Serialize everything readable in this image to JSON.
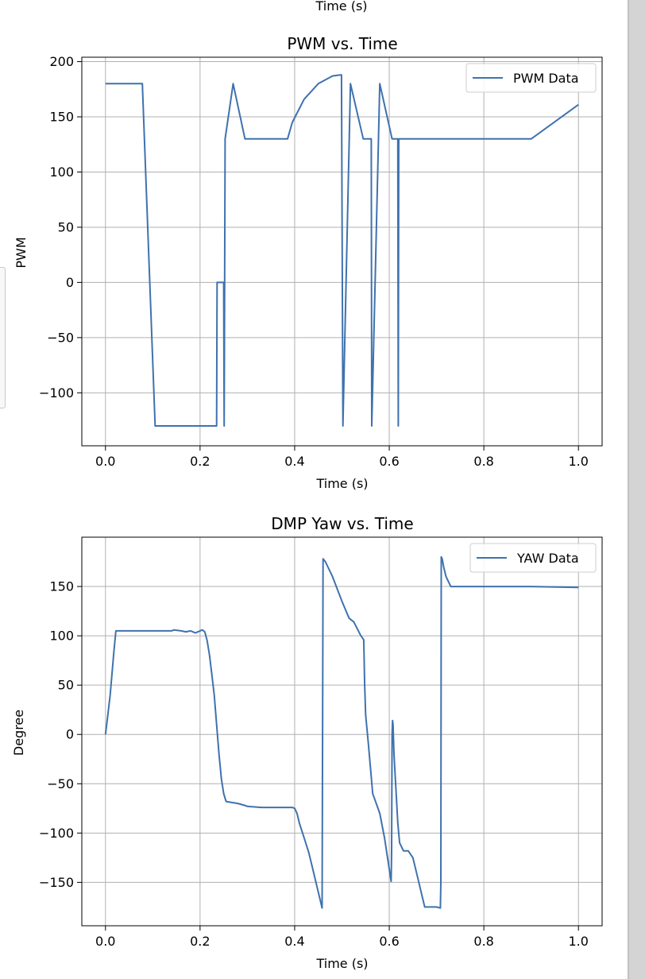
{
  "top_cut_label": "Time (s)",
  "chart_data": [
    {
      "type": "line",
      "title": "PWM vs. Time",
      "xlabel": "Time (s)",
      "ylabel": "PWM",
      "xlim": [
        -0.05,
        1.05
      ],
      "ylim": [
        -148,
        204
      ],
      "x_ticks": [
        0.0,
        0.2,
        0.4,
        0.6,
        0.8,
        1.0
      ],
      "x_tick_labels": [
        "0.0",
        "0.2",
        "0.4",
        "0.6",
        "0.8",
        "1.0"
      ],
      "y_ticks": [
        200,
        150,
        100,
        50,
        0,
        -50,
        -100
      ],
      "y_tick_labels": [
        "200",
        "150",
        "100",
        "50",
        "0",
        "−50",
        "−100"
      ],
      "grid": true,
      "legend": "top-right",
      "color": "#3f72ae",
      "series": [
        {
          "name": "PWM Data",
          "x": [
            0.0,
            0.078,
            0.105,
            0.235,
            0.236,
            0.25,
            0.251,
            0.252,
            0.253,
            0.27,
            0.295,
            0.385,
            0.395,
            0.42,
            0.45,
            0.48,
            0.497,
            0.499,
            0.502,
            0.518,
            0.545,
            0.562,
            0.563,
            0.58,
            0.606,
            0.618,
            0.619,
            0.62,
            0.621,
            0.625,
            0.9,
            1.0
          ],
          "y": [
            180,
            180,
            -130,
            -130,
            0,
            0,
            -130,
            0,
            130,
            180,
            130,
            130,
            145,
            166,
            180,
            187,
            188,
            188,
            -130,
            180,
            130,
            130,
            -130,
            180,
            130,
            130,
            -130,
            130,
            130,
            130,
            130,
            161
          ]
        }
      ]
    },
    {
      "type": "line",
      "title": "DMP Yaw vs. Time",
      "xlabel": "Time (s)",
      "ylabel": "Degree",
      "xlim": [
        -0.05,
        1.05
      ],
      "ylim": [
        -194,
        200
      ],
      "x_ticks": [
        0.0,
        0.2,
        0.4,
        0.6,
        0.8,
        1.0
      ],
      "x_tick_labels": [
        "0.0",
        "0.2",
        "0.4",
        "0.6",
        "0.8",
        "1.0"
      ],
      "y_ticks": [
        150,
        100,
        50,
        0,
        -50,
        -100,
        -150
      ],
      "y_tick_labels": [
        "150",
        "100",
        "50",
        "0",
        "−50",
        "−100",
        "−150"
      ],
      "grid": true,
      "legend": "top-right",
      "color": "#3f72ae",
      "series": [
        {
          "name": "YAW Data",
          "x": [
            0.0,
            0.005,
            0.01,
            0.018,
            0.022,
            0.023,
            0.05,
            0.1,
            0.14,
            0.145,
            0.16,
            0.17,
            0.18,
            0.19,
            0.2,
            0.205,
            0.21,
            0.215,
            0.22,
            0.225,
            0.23,
            0.235,
            0.24,
            0.245,
            0.25,
            0.255,
            0.28,
            0.295,
            0.3,
            0.33,
            0.37,
            0.39,
            0.395,
            0.4,
            0.405,
            0.41,
            0.42,
            0.43,
            0.44,
            0.455,
            0.458,
            0.46,
            0.465,
            0.48,
            0.5,
            0.515,
            0.52,
            0.525,
            0.54,
            0.546,
            0.548,
            0.55,
            0.556,
            0.565,
            0.58,
            0.59,
            0.604,
            0.605,
            0.606,
            0.607,
            0.608,
            0.61,
            0.618,
            0.622,
            0.63,
            0.64,
            0.65,
            0.655,
            0.66,
            0.67,
            0.675,
            0.68,
            0.7,
            0.708,
            0.709,
            0.71,
            0.712,
            0.715,
            0.72,
            0.73,
            0.8,
            0.9,
            1.0
          ],
          "y": [
            0,
            20,
            40,
            85,
            105,
            105,
            105,
            105,
            105,
            106,
            105,
            104,
            105,
            103,
            105,
            106,
            104,
            95,
            80,
            60,
            40,
            10,
            -20,
            -45,
            -60,
            -68,
            -70,
            -72,
            -73,
            -74,
            -74,
            -74,
            -74,
            -75,
            -80,
            -90,
            -105,
            -120,
            -140,
            -170,
            -176,
            178,
            175,
            160,
            135,
            118,
            116,
            114,
            100,
            96,
            50,
            20,
            -10,
            -60,
            -80,
            -105,
            -149,
            -120,
            0,
            14,
            10,
            -20,
            -90,
            -110,
            -118,
            -118,
            -125,
            -135,
            -145,
            -165,
            -175,
            -175,
            -175,
            -176,
            -150,
            180,
            178,
            170,
            160,
            150,
            150,
            150,
            149
          ]
        }
      ]
    }
  ]
}
